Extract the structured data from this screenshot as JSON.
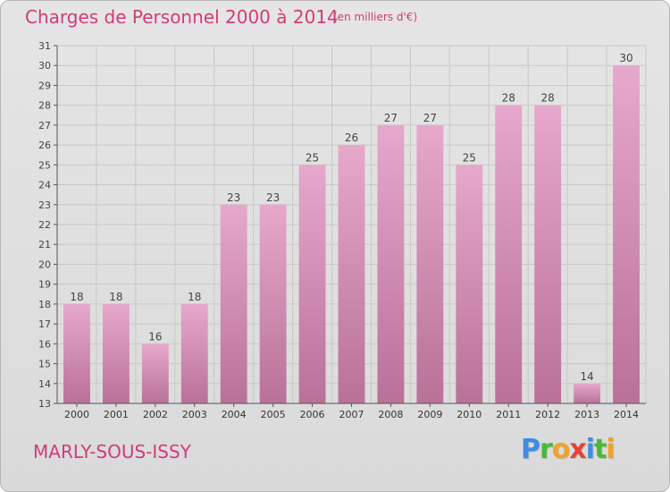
{
  "header": {
    "title": "Charges de Personnel 2000 à 2014",
    "subtitle": "(en milliers d'€)"
  },
  "footer": {
    "commune": "MARLY-SOUS-ISSY",
    "logo_letters": [
      {
        "ch": "P",
        "color": "#3c8de3"
      },
      {
        "ch": "r",
        "color": "#49b83a"
      },
      {
        "ch": "o",
        "color": "#f0a22a"
      },
      {
        "ch": "x",
        "color": "#e8413a"
      },
      {
        "ch": "i",
        "color": "#3c8de3"
      },
      {
        "ch": "t",
        "color": "#49b83a"
      },
      {
        "ch": "i",
        "color": "#f0a22a"
      }
    ]
  },
  "colors": {
    "bar_light": "#e6a8cb",
    "bar_dark": "#b97198",
    "accent": "#d03c78",
    "grid": "#c8c8c8"
  },
  "chart_data": {
    "type": "bar",
    "categories": [
      "2000",
      "2001",
      "2002",
      "2003",
      "2004",
      "2005",
      "2006",
      "2007",
      "2008",
      "2009",
      "2010",
      "2011",
      "2012",
      "2013",
      "2014"
    ],
    "values": [
      18,
      18,
      16,
      18,
      23,
      23,
      25,
      26,
      27,
      27,
      25,
      28,
      28,
      14,
      30
    ],
    "ylim": [
      13,
      31
    ],
    "yticks": [
      13,
      14,
      15,
      16,
      17,
      18,
      19,
      20,
      21,
      22,
      23,
      24,
      25,
      26,
      27,
      28,
      29,
      30,
      31
    ],
    "grid": true,
    "legend": "none"
  }
}
